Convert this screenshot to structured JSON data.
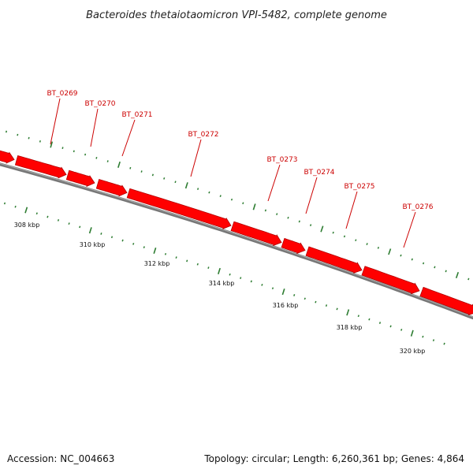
{
  "title": "Bacteroides thetaiotaomicron VPI-5482, complete genome",
  "footer": {
    "accession": "Accession: NC_004663",
    "summary": "Topology: circular; Length: 6,260,361 bp; Genes: 4,864"
  },
  "colors": {
    "gene_fill": "#ff0000",
    "gene_stroke": "#b00000",
    "gene_label": "#cc0000",
    "backbone": "#777777",
    "tick": "#2e7d32",
    "text": "#111111"
  },
  "genes": [
    {
      "name": "BT_0269"
    },
    {
      "name": "BT_0270"
    },
    {
      "name": "BT_0271"
    },
    {
      "name": "BT_0272"
    },
    {
      "name": "BT_0273"
    },
    {
      "name": "BT_0274"
    },
    {
      "name": "BT_0275"
    },
    {
      "name": "BT_0276"
    }
  ],
  "kbp_labels": [
    {
      "text": "308 kbp"
    },
    {
      "text": "310 kbp"
    },
    {
      "text": "312 kbp"
    },
    {
      "text": "314 kbp"
    },
    {
      "text": "316 kbp"
    },
    {
      "text": "318 kbp"
    },
    {
      "text": "320 kbp"
    }
  ]
}
